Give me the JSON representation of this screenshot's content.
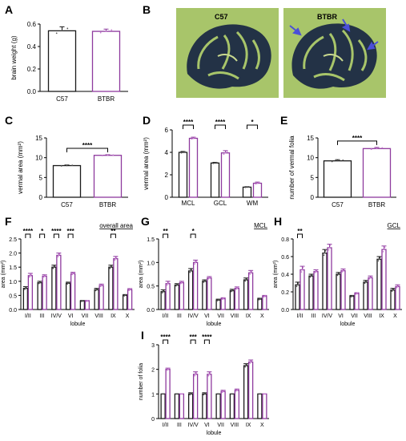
{
  "figure": {
    "panel_letters": [
      "A",
      "B",
      "C",
      "D",
      "E",
      "F",
      "G",
      "H",
      "I"
    ],
    "colors": {
      "c57": "#1a1a1a",
      "btbr": "#8e3a9e",
      "points": "#c77fd1",
      "arrows": "#4b4fd8",
      "tissue_bg": "#a8c56a",
      "tissue_dark": "#233246"
    }
  },
  "photo_b": {
    "left_label": "C57",
    "right_label": "BTBR"
  },
  "chart_data": [
    {
      "id": "A",
      "type": "bar",
      "categories": [
        "C57",
        "BTBR"
      ],
      "values": [
        0.54,
        0.535
      ],
      "errors": [
        0.035,
        0.02
      ],
      "ylabel": "brain weight (g)",
      "ylim": [
        0,
        0.6
      ],
      "yticks": [
        "0.0",
        "0.2",
        "0.4",
        "0.6"
      ],
      "bar_colors": [
        "#1a1a1a",
        "#8e3a9e"
      ]
    },
    {
      "id": "C",
      "type": "bar",
      "categories": [
        "C57",
        "BTBR"
      ],
      "values": [
        8.0,
        10.6
      ],
      "errors": [
        0.15,
        0.15
      ],
      "ylabel": "vermal area (mm²)",
      "ylim": [
        0,
        15
      ],
      "yticks": [
        "0",
        "5",
        "10",
        "15"
      ],
      "bar_colors": [
        "#1a1a1a",
        "#8e3a9e"
      ],
      "significance": [
        {
          "from": 0,
          "to": 1,
          "label": "****"
        }
      ]
    },
    {
      "id": "D",
      "type": "bar",
      "categories": [
        "MCL",
        "GCL",
        "WM"
      ],
      "series": [
        {
          "values": [
            4.0,
            3.05,
            0.9
          ],
          "errors": [
            0.08,
            0.06,
            0.04
          ]
        },
        {
          "values": [
            5.25,
            3.95,
            1.25
          ],
          "errors": [
            0.1,
            0.2,
            0.1
          ]
        }
      ],
      "ylabel": "vermal area (mm²)",
      "ylim": [
        0,
        6
      ],
      "yticks": [
        "0",
        "2",
        "4",
        "6"
      ],
      "significance": [
        {
          "cat": 0,
          "label": "****"
        },
        {
          "cat": 1,
          "label": "****"
        },
        {
          "cat": 2,
          "label": "*"
        }
      ]
    },
    {
      "id": "E",
      "type": "bar",
      "categories": [
        "C57",
        "BTBR"
      ],
      "values": [
        9.2,
        12.3
      ],
      "errors": [
        0.3,
        0.3
      ],
      "ylabel": "number of vermal folia",
      "ylim": [
        0,
        15
      ],
      "yticks": [
        "0",
        "5",
        "10",
        "15"
      ],
      "bar_colors": [
        "#1a1a1a",
        "#8e3a9e"
      ],
      "significance": [
        {
          "from": 0,
          "to": 1,
          "label": "****"
        }
      ]
    },
    {
      "id": "F",
      "type": "bar",
      "title": "overall area",
      "categories": [
        "I/II",
        "III",
        "IV/V",
        "VI",
        "VII",
        "VIII",
        "IX",
        "X"
      ],
      "series": [
        {
          "values": [
            0.75,
            0.95,
            1.5,
            0.93,
            0.3,
            0.7,
            1.5,
            0.5
          ],
          "errors": [
            0.06,
            0.05,
            0.07,
            0.04,
            0.02,
            0.05,
            0.07,
            0.03
          ]
        },
        {
          "values": [
            1.2,
            1.18,
            1.92,
            1.27,
            0.3,
            0.85,
            1.8,
            0.7
          ],
          "errors": [
            0.08,
            0.05,
            0.08,
            0.05,
            0.02,
            0.05,
            0.08,
            0.04
          ]
        }
      ],
      "xlabel": "lobule",
      "ylabel": "area (mm²)",
      "ylim": [
        0,
        2.5
      ],
      "yticks": [
        "0.0",
        "0.5",
        "1.0",
        "1.5",
        "2.0",
        "2.5"
      ],
      "significance": [
        {
          "cat": 0,
          "label": "****"
        },
        {
          "cat": 1,
          "label": "*"
        },
        {
          "cat": 2,
          "label": "****"
        },
        {
          "cat": 3,
          "label": "***"
        },
        {
          "cat": 6,
          "label": "**"
        }
      ]
    },
    {
      "id": "G",
      "type": "bar",
      "title": "MCL",
      "categories": [
        "I/II",
        "III",
        "IV/V",
        "VI",
        "VII",
        "VIII",
        "IX",
        "X"
      ],
      "series": [
        {
          "values": [
            0.38,
            0.52,
            0.82,
            0.6,
            0.2,
            0.4,
            0.63,
            0.22
          ],
          "errors": [
            0.04,
            0.03,
            0.05,
            0.03,
            0.02,
            0.03,
            0.04,
            0.02
          ]
        },
        {
          "values": [
            0.55,
            0.57,
            1.0,
            0.67,
            0.23,
            0.45,
            0.78,
            0.28
          ],
          "errors": [
            0.05,
            0.03,
            0.05,
            0.03,
            0.02,
            0.03,
            0.05,
            0.02
          ]
        }
      ],
      "xlabel": "lobule",
      "ylabel": "area (mm²)",
      "ylim": [
        0,
        1.5
      ],
      "yticks": [
        "0.0",
        "0.5",
        "1.0",
        "1.5"
      ],
      "significance": [
        {
          "cat": 0,
          "label": "**"
        },
        {
          "cat": 2,
          "label": "*"
        }
      ]
    },
    {
      "id": "H",
      "type": "bar",
      "title": "GCL",
      "categories": [
        "I/II",
        "III",
        "IV/V",
        "VI",
        "VII",
        "VIII",
        "IX",
        "X"
      ],
      "series": [
        {
          "values": [
            0.28,
            0.38,
            0.64,
            0.4,
            0.15,
            0.31,
            0.57,
            0.22
          ],
          "errors": [
            0.03,
            0.02,
            0.04,
            0.02,
            0.01,
            0.02,
            0.03,
            0.02
          ]
        },
        {
          "values": [
            0.45,
            0.43,
            0.7,
            0.44,
            0.18,
            0.36,
            0.68,
            0.26
          ],
          "errors": [
            0.04,
            0.02,
            0.04,
            0.02,
            0.01,
            0.02,
            0.04,
            0.02
          ]
        }
      ],
      "xlabel": "lobule",
      "ylabel": "area (mm²)",
      "ylim": [
        0,
        0.8
      ],
      "yticks": [
        "0.0",
        "0.2",
        "0.4",
        "0.6",
        "0.8"
      ],
      "significance": [
        {
          "cat": 0,
          "label": "**"
        }
      ]
    },
    {
      "id": "I",
      "type": "bar",
      "categories": [
        "I/II",
        "III",
        "IV/V",
        "VI",
        "VII",
        "VIII",
        "IX",
        "X"
      ],
      "series": [
        {
          "values": [
            1.0,
            1.0,
            1.0,
            1.0,
            1.0,
            1.0,
            2.15,
            1.0
          ],
          "errors": [
            0,
            0,
            0.05,
            0.05,
            0,
            0,
            0.08,
            0
          ]
        },
        {
          "values": [
            2.0,
            1.0,
            1.8,
            1.8,
            1.1,
            1.15,
            2.3,
            1.0
          ],
          "errors": [
            0.05,
            0,
            0.1,
            0.1,
            0.05,
            0.05,
            0.08,
            0
          ]
        }
      ],
      "xlabel": "lobule",
      "ylabel": "number of folia",
      "ylim": [
        0,
        3
      ],
      "yticks": [
        "0",
        "1",
        "2",
        "3"
      ],
      "significance": [
        {
          "cat": 0,
          "label": "****"
        },
        {
          "cat": 2,
          "label": "***"
        },
        {
          "cat": 3,
          "label": "****"
        }
      ]
    }
  ]
}
